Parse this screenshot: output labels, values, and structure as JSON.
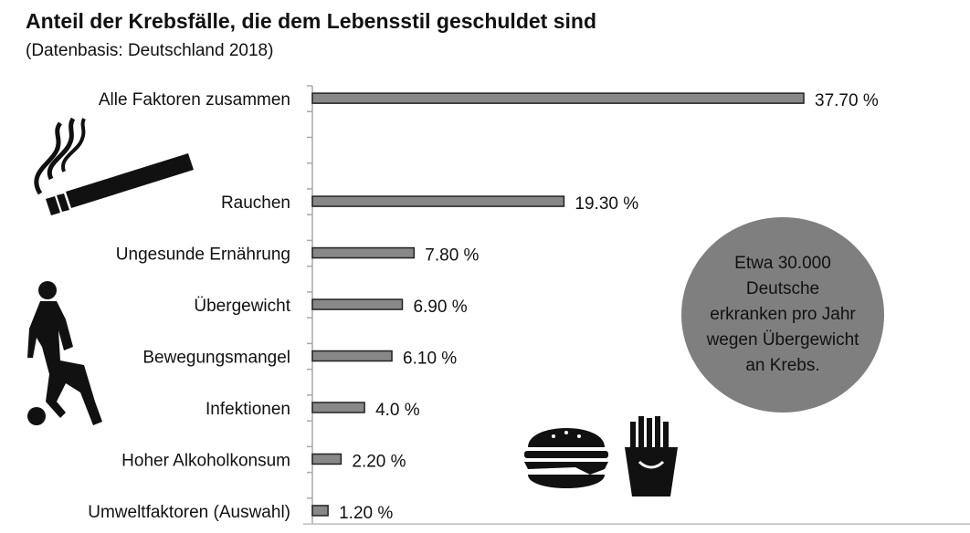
{
  "title": "Anteil der Krebsfälle, die dem Lebensstil geschuldet sind",
  "subtitle": "(Datenbasis: Deutschland 2018)",
  "callout": "Etwa 30.000 Deutsche erkranken pro Jahr wegen Übergewicht an Krebs.",
  "icons": [
    "cigarette-icon",
    "soccer-player-icon",
    "burger-icon",
    "fries-icon"
  ],
  "colors": {
    "bar": "#888888",
    "bar_border": "#222222",
    "callout": "#7f7f7f"
  },
  "chart_data": {
    "type": "bar",
    "orientation": "horizontal",
    "categories": [
      "Alle Faktoren zusammen",
      "Rauchen",
      "Ungesunde Ernährung",
      "Übergewicht",
      "Bewegungsmangel",
      "Infektionen",
      "Hoher Alkoholkonsum",
      "Umweltfaktoren (Auswahl)"
    ],
    "values": [
      37.7,
      19.3,
      7.8,
      6.9,
      6.1,
      4.0,
      2.2,
      1.2
    ],
    "data_labels": [
      "37.70 %",
      "19.30 %",
      "7.80 %",
      "6.90 %",
      "6.10 %",
      "4.0 %",
      "2.20 %",
      "1.20 %"
    ],
    "unit": "%",
    "xlim": [
      0,
      37.7
    ],
    "grid": false,
    "legend": "none"
  }
}
